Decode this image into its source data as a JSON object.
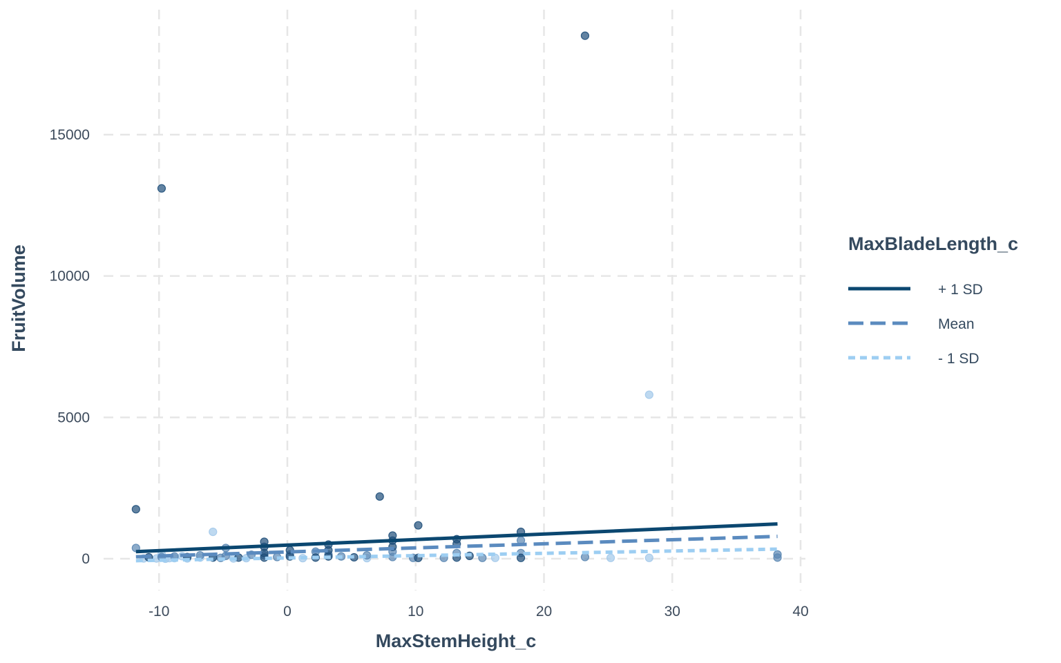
{
  "chart_data": {
    "type": "scatter",
    "title": "",
    "xlabel": "MaxStemHeight_c",
    "ylabel": "FruitVolume",
    "xlim": [
      -14,
      41
    ],
    "ylim": [
      -1000,
      19000
    ],
    "x_ticks": [
      -10,
      0,
      10,
      20,
      30,
      40
    ],
    "y_ticks": [
      0,
      5000,
      10000,
      15000
    ],
    "grid": true,
    "legend": {
      "title": "MaxBladeLength_c",
      "position": "right",
      "entries": [
        {
          "label": "+ 1 SD",
          "color": "#0b4770",
          "style": "solid"
        },
        {
          "label": "Mean",
          "color": "#5b8bbf",
          "style": "dashed"
        },
        {
          "label": "- 1 SD",
          "color": "#9dcef2",
          "style": "dotted"
        }
      ]
    },
    "lines": [
      {
        "name": "+ 1 SD",
        "color": "#0b4770",
        "style": "solid",
        "x": [
          -11.8,
          38.2
        ],
        "y": [
          250,
          1230
        ]
      },
      {
        "name": "Mean",
        "color": "#5b8bbf",
        "style": "dashed",
        "x": [
          -11.8,
          38.2
        ],
        "y": [
          70,
          790
        ]
      },
      {
        "name": "- 1 SD",
        "color": "#9dcef2",
        "style": "dotted",
        "x": [
          -11.8,
          38.2
        ],
        "y": [
          -70,
          340
        ]
      }
    ],
    "point_groups": [
      {
        "color": "#1f4f7a",
        "points": [
          [
            -11.8,
            1750
          ],
          [
            -9.8,
            13100
          ],
          [
            23.2,
            18500
          ],
          [
            7.2,
            2200
          ],
          [
            10.2,
            1180
          ],
          [
            18.2,
            950
          ],
          [
            13.2,
            690
          ],
          [
            13.2,
            520
          ],
          [
            8.2,
            820
          ],
          [
            8.2,
            640
          ],
          [
            8.2,
            420
          ],
          [
            -1.8,
            600
          ],
          [
            -1.8,
            420
          ],
          [
            -1.8,
            200
          ],
          [
            -1.8,
            40
          ],
          [
            0.2,
            300
          ],
          [
            0.2,
            80
          ],
          [
            3.2,
            500
          ],
          [
            3.2,
            300
          ],
          [
            3.2,
            80
          ],
          [
            5.2,
            50
          ],
          [
            13.2,
            40
          ],
          [
            14.2,
            100
          ],
          [
            18.2,
            30
          ],
          [
            -3.8,
            40
          ],
          [
            -7.8,
            60
          ],
          [
            -10.8,
            50
          ],
          [
            2.2,
            40
          ],
          [
            -5.8,
            40
          ],
          [
            10.2,
            30
          ]
        ]
      },
      {
        "color": "#5b87b3",
        "points": [
          [
            -11.8,
            380
          ],
          [
            -4.8,
            380
          ],
          [
            -6.8,
            120
          ],
          [
            -2.8,
            140
          ],
          [
            4.2,
            80
          ],
          [
            6.2,
            120
          ],
          [
            8.2,
            250
          ],
          [
            8.2,
            60
          ],
          [
            13.2,
            200
          ],
          [
            18.2,
            650
          ],
          [
            18.2,
            200
          ],
          [
            23.2,
            60
          ],
          [
            38.2,
            150
          ],
          [
            38.2,
            40
          ],
          [
            9.8,
            30
          ],
          [
            -8.8,
            80
          ],
          [
            -0.8,
            60
          ],
          [
            2.2,
            250
          ],
          [
            -5.2,
            30
          ],
          [
            -4.8,
            100
          ],
          [
            15.2,
            30
          ],
          [
            -1.8,
            120
          ],
          [
            0.2,
            150
          ],
          [
            3.2,
            150
          ],
          [
            12.2,
            30
          ],
          [
            -9.8,
            60
          ]
        ]
      },
      {
        "color": "#a3c9ea",
        "points": [
          [
            28.2,
            5800
          ],
          [
            -5.8,
            950
          ],
          [
            25.2,
            30
          ],
          [
            28.2,
            30
          ],
          [
            16.2,
            30
          ],
          [
            -8.8,
            20
          ],
          [
            -9.8,
            160
          ],
          [
            -6.8,
            40
          ],
          [
            -7.8,
            10
          ],
          [
            -10.2,
            10
          ],
          [
            -9.2,
            20
          ],
          [
            -11.2,
            10
          ],
          [
            -3.2,
            20
          ],
          [
            -8.2,
            90
          ],
          [
            -5.8,
            60
          ],
          [
            1.2,
            20
          ],
          [
            6.2,
            20
          ],
          [
            -4.2,
            10
          ],
          [
            -9.5,
            0
          ]
        ]
      }
    ]
  }
}
